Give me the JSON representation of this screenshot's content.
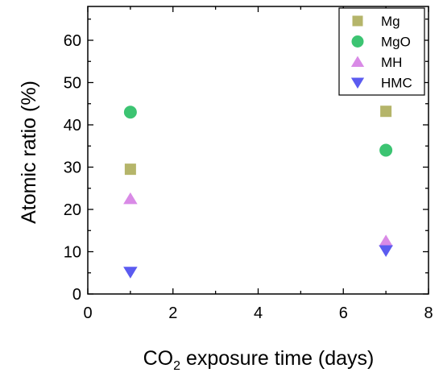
{
  "chart_data": {
    "type": "scatter",
    "title": "",
    "xlabel": {
      "main": "CO",
      "subscript": "2",
      "rest": " exposure time (days)"
    },
    "ylabel": "Atomic ratio (%)",
    "xlim": [
      0,
      8
    ],
    "ylim": [
      0,
      68
    ],
    "x_ticks": [
      0,
      2,
      4,
      6,
      8
    ],
    "y_ticks": [
      0,
      10,
      20,
      30,
      40,
      50,
      60
    ],
    "grid": false,
    "legend_position": "top-right",
    "series": [
      {
        "name": "Mg",
        "marker": "square",
        "color": "#b5b56a",
        "points": [
          {
            "x": 1,
            "y": 29.5
          },
          {
            "x": 7,
            "y": 43.2
          }
        ]
      },
      {
        "name": "MgO",
        "marker": "circle",
        "color": "#3cc472",
        "points": [
          {
            "x": 1,
            "y": 43
          },
          {
            "x": 7,
            "y": 34
          }
        ]
      },
      {
        "name": "MH",
        "marker": "triangle-up",
        "color": "#d98ae6",
        "points": [
          {
            "x": 1,
            "y": 22.5
          },
          {
            "x": 7,
            "y": 12.5
          }
        ]
      },
      {
        "name": "HMC",
        "marker": "triangle-down",
        "color": "#5b5bf0",
        "points": [
          {
            "x": 1,
            "y": 5.2
          },
          {
            "x": 7,
            "y": 10.3
          }
        ]
      }
    ]
  }
}
